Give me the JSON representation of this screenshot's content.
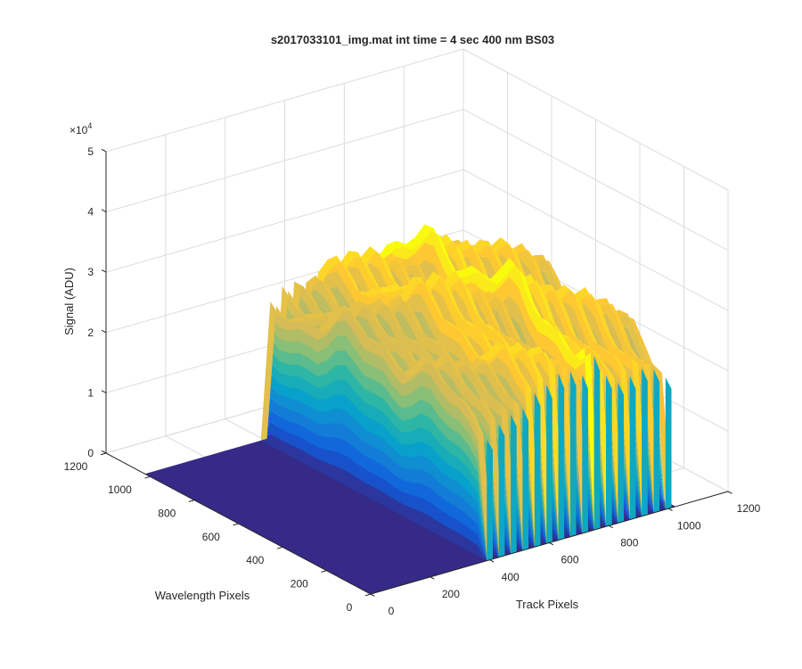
{
  "chart_data": {
    "type": "surface",
    "title": "s2017033101_img.mat int time = 4 sec  400 nm BS03",
    "xlabel": "Track Pixels",
    "ylabel": "Wavelength Pixels",
    "zlabel": "Signal (ADU)",
    "xlim": [
      0,
      1200
    ],
    "ylim": [
      0,
      1200
    ],
    "zlim": [
      0,
      50000
    ],
    "x_ticks": [
      "0",
      "200",
      "400",
      "600",
      "800",
      "1000",
      "1200"
    ],
    "y_ticks": [
      "0",
      "200",
      "400",
      "600",
      "800",
      "1000",
      "1200"
    ],
    "z_ticks": [
      "0",
      "1",
      "2",
      "3",
      "4",
      "5"
    ],
    "z_exponent_base": "×10",
    "z_exponent_power": "4",
    "grid": true,
    "colormap": "parula",
    "colormap_stops": [
      "#352a87",
      "#0f5cdd",
      "#1481d6",
      "#06a4ca",
      "#2eb7a4",
      "#87bf77",
      "#d1bb59",
      "#fec832",
      "#f9fb0e"
    ],
    "data_extent": {
      "x": [
        0,
        1024
      ],
      "y": [
        0,
        1024
      ]
    },
    "illuminated_wavelength_range": [
      0,
      1024
    ],
    "background_level": 0,
    "tracks": [
      {
        "x": 400,
        "peak": 27000
      },
      {
        "x": 440,
        "peak": 27500
      },
      {
        "x": 480,
        "peak": 27500
      },
      {
        "x": 520,
        "peak": 28000
      },
      {
        "x": 560,
        "peak": 31000
      },
      {
        "x": 600,
        "peak": 31500
      },
      {
        "x": 640,
        "peak": 31500
      },
      {
        "x": 680,
        "peak": 30000
      },
      {
        "x": 720,
        "peak": 29000
      },
      {
        "x": 760,
        "peak": 34000
      },
      {
        "x": 800,
        "peak": 32000
      },
      {
        "x": 840,
        "peak": 31000
      },
      {
        "x": 880,
        "peak": 31000
      },
      {
        "x": 920,
        "peak": 31000
      },
      {
        "x": 960,
        "peak": 30000
      },
      {
        "x": 1000,
        "peak": 28500
      }
    ]
  }
}
